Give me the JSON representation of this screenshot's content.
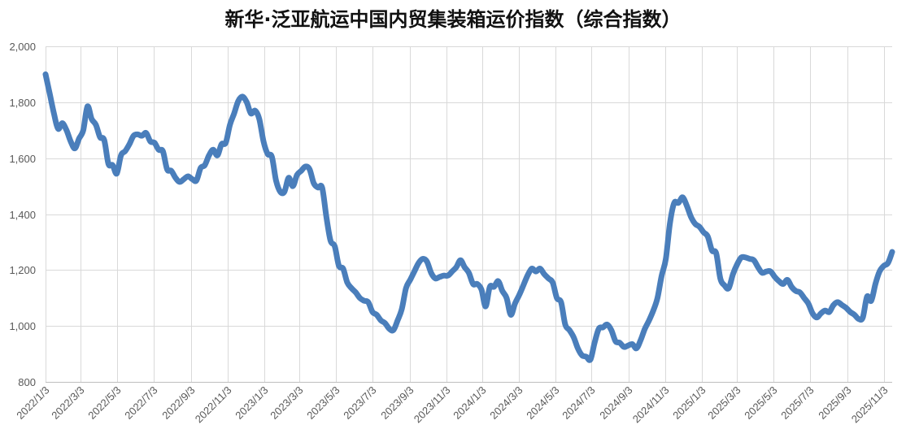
{
  "chart_data": {
    "type": "line",
    "title": "新华·泛亚航运中国内贸集装箱运价指数（综合指数）",
    "ylim": [
      800,
      2000
    ],
    "xlim": [
      "2022/1/3",
      "2025/11/17"
    ],
    "grid": true,
    "grid_color": "#d9d9d9",
    "legend": "none",
    "y_tick_labels": [
      "2,000",
      "1,800",
      "1,600",
      "1,400",
      "1,200",
      "1,000",
      "800"
    ],
    "x_ticks": [
      "2022/1/3",
      "2022/3/3",
      "2022/5/3",
      "2022/7/3",
      "2022/9/3",
      "2022/11/3",
      "2023/1/3",
      "2023/3/3",
      "2023/5/3",
      "2023/7/3",
      "2023/9/3",
      "2023/11/3",
      "2024/1/3",
      "2024/3/3",
      "2024/5/3",
      "2024/7/3",
      "2024/9/3",
      "2024/11/3",
      "2025/1/3",
      "2025/3/3",
      "2025/5/3",
      "2025/7/3",
      "2025/9/3",
      "2025/11/3"
    ],
    "x": [
      "2022/1/3",
      "2022/1/10",
      "2022/1/17",
      "2022/1/24",
      "2022/1/31",
      "2022/2/7",
      "2022/2/14",
      "2022/2/21",
      "2022/2/28",
      "2022/3/7",
      "2022/3/14",
      "2022/3/21",
      "2022/3/28",
      "2022/4/4",
      "2022/4/11",
      "2022/4/18",
      "2022/4/25",
      "2022/5/2",
      "2022/5/9",
      "2022/5/16",
      "2022/5/23",
      "2022/5/30",
      "2022/6/6",
      "2022/6/13",
      "2022/6/20",
      "2022/6/27",
      "2022/7/4",
      "2022/7/11",
      "2022/7/18",
      "2022/7/25",
      "2022/8/1",
      "2022/8/8",
      "2022/8/15",
      "2022/8/22",
      "2022/8/29",
      "2022/9/5",
      "2022/9/12",
      "2022/9/19",
      "2022/9/26",
      "2022/10/3",
      "2022/10/10",
      "2022/10/17",
      "2022/10/24",
      "2022/10/31",
      "2022/11/7",
      "2022/11/14",
      "2022/11/21",
      "2022/11/28",
      "2022/12/5",
      "2022/12/12",
      "2022/12/19",
      "2022/12/26",
      "2023/1/2",
      "2023/1/9",
      "2023/1/16",
      "2023/1/23",
      "2023/1/30",
      "2023/2/6",
      "2023/2/13",
      "2023/2/20",
      "2023/2/27",
      "2023/3/6",
      "2023/3/13",
      "2023/3/20",
      "2023/3/27",
      "2023/4/3",
      "2023/4/10",
      "2023/4/17",
      "2023/4/24",
      "2023/5/1",
      "2023/5/8",
      "2023/5/15",
      "2023/5/22",
      "2023/5/29",
      "2023/6/5",
      "2023/6/12",
      "2023/6/19",
      "2023/6/26",
      "2023/7/3",
      "2023/7/10",
      "2023/7/17",
      "2023/7/24",
      "2023/7/31",
      "2023/8/7",
      "2023/8/14",
      "2023/8/21",
      "2023/8/28",
      "2023/9/4",
      "2023/9/11",
      "2023/9/18",
      "2023/9/25",
      "2023/10/2",
      "2023/10/9",
      "2023/10/16",
      "2023/10/23",
      "2023/10/30",
      "2023/11/6",
      "2023/11/13",
      "2023/11/20",
      "2023/11/27",
      "2023/12/4",
      "2023/12/11",
      "2023/12/18",
      "2023/12/25",
      "2024/1/1",
      "2024/1/8",
      "2024/1/15",
      "2024/1/22",
      "2024/1/29",
      "2024/2/5",
      "2024/2/12",
      "2024/2/19",
      "2024/2/26",
      "2024/3/4",
      "2024/3/11",
      "2024/3/18",
      "2024/3/25",
      "2024/4/1",
      "2024/4/8",
      "2024/4/15",
      "2024/4/22",
      "2024/4/29",
      "2024/5/6",
      "2024/5/13",
      "2024/5/20",
      "2024/5/27",
      "2024/6/3",
      "2024/6/10",
      "2024/6/17",
      "2024/6/24",
      "2024/7/1",
      "2024/7/8",
      "2024/7/15",
      "2024/7/22",
      "2024/7/29",
      "2024/8/5",
      "2024/8/12",
      "2024/8/19",
      "2024/8/26",
      "2024/9/2",
      "2024/9/9",
      "2024/9/16",
      "2024/9/23",
      "2024/9/30",
      "2024/10/7",
      "2024/10/14",
      "2024/10/21",
      "2024/10/28",
      "2024/11/4",
      "2024/11/11",
      "2024/11/18",
      "2024/11/25",
      "2024/12/2",
      "2024/12/9",
      "2024/12/16",
      "2024/12/23",
      "2024/12/30",
      "2025/1/6",
      "2025/1/13",
      "2025/1/20",
      "2025/1/27",
      "2025/2/3",
      "2025/2/10",
      "2025/2/17",
      "2025/2/24",
      "2025/3/3",
      "2025/3/10",
      "2025/3/17",
      "2025/3/24",
      "2025/3/31",
      "2025/4/7",
      "2025/4/14",
      "2025/4/21",
      "2025/4/28",
      "2025/5/5",
      "2025/5/12",
      "2025/5/19",
      "2025/5/26",
      "2025/6/2",
      "2025/6/9",
      "2025/6/16",
      "2025/6/23",
      "2025/6/30",
      "2025/7/7",
      "2025/7/14",
      "2025/7/21",
      "2025/7/28",
      "2025/8/4",
      "2025/8/11",
      "2025/8/18",
      "2025/8/25",
      "2025/9/1",
      "2025/9/8",
      "2025/9/15",
      "2025/9/22",
      "2025/9/29",
      "2025/10/6",
      "2025/10/13",
      "2025/10/20",
      "2025/10/27",
      "2025/11/3",
      "2025/11/10",
      "2025/11/17"
    ],
    "series": [
      {
        "color": "#4a7ebb",
        "values": [
          1900,
          1830,
          1760,
          1705,
          1725,
          1700,
          1660,
          1635,
          1670,
          1700,
          1785,
          1740,
          1720,
          1675,
          1665,
          1580,
          1575,
          1545,
          1610,
          1625,
          1650,
          1680,
          1685,
          1680,
          1690,
          1660,
          1655,
          1630,
          1625,
          1560,
          1555,
          1530,
          1515,
          1525,
          1535,
          1525,
          1520,
          1565,
          1575,
          1610,
          1630,
          1610,
          1650,
          1655,
          1720,
          1760,
          1805,
          1820,
          1800,
          1760,
          1770,
          1740,
          1660,
          1615,
          1605,
          1520,
          1480,
          1480,
          1530,
          1500,
          1540,
          1555,
          1570,
          1560,
          1510,
          1495,
          1495,
          1390,
          1305,
          1285,
          1215,
          1205,
          1155,
          1135,
          1120,
          1100,
          1090,
          1085,
          1050,
          1040,
          1020,
          1010,
          990,
          985,
          1020,
          1060,
          1135,
          1165,
          1195,
          1225,
          1240,
          1230,
          1190,
          1170,
          1175,
          1180,
          1180,
          1195,
          1210,
          1235,
          1210,
          1190,
          1150,
          1150,
          1130,
          1070,
          1140,
          1140,
          1160,
          1125,
          1100,
          1040,
          1080,
          1110,
          1145,
          1180,
          1205,
          1195,
          1205,
          1185,
          1170,
          1155,
          1100,
          1085,
          1005,
          985,
          960,
          920,
          895,
          890,
          880,
          940,
          990,
          995,
          1005,
          985,
          945,
          940,
          925,
          930,
          935,
          920,
          950,
          990,
          1020,
          1055,
          1100,
          1180,
          1240,
          1370,
          1440,
          1440,
          1460,
          1430,
          1390,
          1365,
          1355,
          1335,
          1320,
          1270,
          1260,
          1170,
          1145,
          1135,
          1185,
          1220,
          1245,
          1245,
          1240,
          1235,
          1210,
          1190,
          1195,
          1195,
          1175,
          1160,
          1150,
          1165,
          1140,
          1125,
          1120,
          1100,
          1080,
          1045,
          1030,
          1045,
          1055,
          1050,
          1075,
          1085,
          1075,
          1065,
          1050,
          1040,
          1025,
          1030,
          1105,
          1090,
          1150,
          1195,
          1215,
          1225,
          1265
        ]
      }
    ]
  }
}
